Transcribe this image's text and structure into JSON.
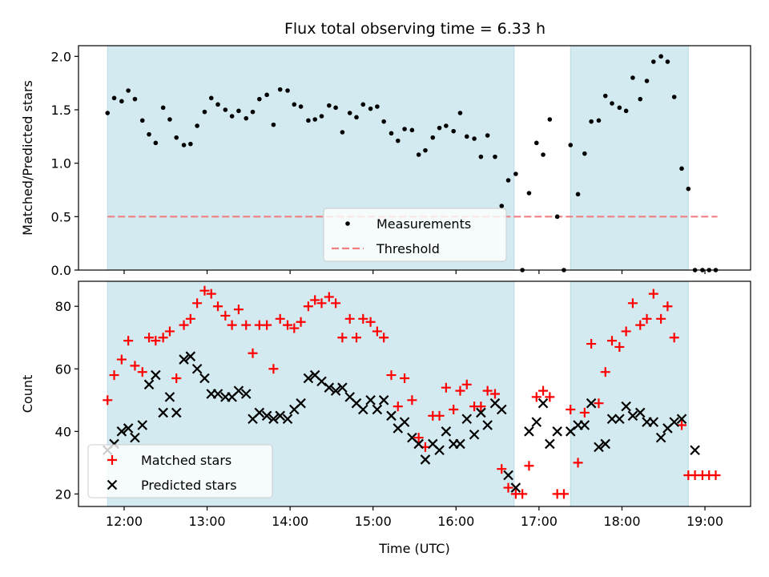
{
  "chart_data": {
    "type": "scatter",
    "title": "Flux total observing time = 6.33 h",
    "xlabel": "Time (UTC)",
    "x_unit": "hours UTC",
    "x_ticks": [
      {
        "value": 12,
        "label": "12:00"
      },
      {
        "value": 13,
        "label": "13:00"
      },
      {
        "value": 14,
        "label": "14:00"
      },
      {
        "value": 15,
        "label": "15:00"
      },
      {
        "value": 16,
        "label": "16:00"
      },
      {
        "value": 17,
        "label": "17:00"
      },
      {
        "value": 18,
        "label": "18:00"
      },
      {
        "value": 19,
        "label": "19:00"
      }
    ],
    "xlim": [
      11.45,
      19.55
    ],
    "observing_windows": [
      [
        11.8,
        16.7
      ],
      [
        17.38,
        18.8
      ]
    ],
    "window_color": "#d3eaf0",
    "panels": [
      {
        "ylabel": "Matched/Predicted stars",
        "ylim": [
          0,
          2.1
        ],
        "y_ticks": [
          {
            "value": 0,
            "label": "0.0"
          },
          {
            "value": 0.5,
            "label": "0.5"
          },
          {
            "value": 1.0,
            "label": "1.0"
          },
          {
            "value": 1.5,
            "label": "1.5"
          },
          {
            "value": 2.0,
            "label": "2.0"
          }
        ],
        "threshold": {
          "name": "Threshold",
          "value": 0.5,
          "x_range": [
            11.8,
            19.15
          ],
          "color": "#f08080"
        },
        "series": [
          {
            "name": "Measurements",
            "marker": "dot",
            "color": "#000000",
            "x": [
              11.8,
              11.88,
              11.97,
              12.05,
              12.13,
              12.22,
              12.3,
              12.38,
              12.47,
              12.55,
              12.63,
              12.72,
              12.8,
              12.88,
              12.97,
              13.05,
              13.13,
              13.22,
              13.3,
              13.38,
              13.47,
              13.55,
              13.63,
              13.72,
              13.8,
              13.88,
              13.97,
              14.05,
              14.13,
              14.22,
              14.3,
              14.38,
              14.47,
              14.55,
              14.63,
              14.72,
              14.8,
              14.88,
              14.97,
              15.05,
              15.13,
              15.22,
              15.3,
              15.38,
              15.47,
              15.55,
              15.63,
              15.72,
              15.8,
              15.88,
              15.97,
              16.05,
              16.13,
              16.22,
              16.3,
              16.38,
              16.47,
              16.55,
              16.63,
              16.72,
              16.8,
              16.88,
              16.97,
              17.05,
              17.13,
              17.22,
              17.3,
              17.38,
              17.47,
              17.55,
              17.63,
              17.72,
              17.8,
              17.88,
              17.97,
              18.05,
              18.13,
              18.22,
              18.3,
              18.38,
              18.47,
              18.55,
              18.63,
              18.72,
              18.8,
              18.88,
              18.97,
              19.05,
              19.13
            ],
            "y": [
              1.47,
              1.61,
              1.58,
              1.68,
              1.6,
              1.4,
              1.27,
              1.19,
              1.52,
              1.41,
              1.24,
              1.17,
              1.18,
              1.35,
              1.48,
              1.61,
              1.55,
              1.5,
              1.44,
              1.49,
              1.42,
              1.48,
              1.6,
              1.64,
              1.36,
              1.69,
              1.68,
              1.55,
              1.53,
              1.4,
              1.41,
              1.44,
              1.54,
              1.52,
              1.29,
              1.47,
              1.43,
              1.55,
              1.51,
              1.53,
              1.39,
              1.28,
              1.21,
              1.32,
              1.31,
              1.08,
              1.12,
              1.24,
              1.33,
              1.35,
              1.3,
              1.47,
              1.25,
              1.23,
              1.06,
              1.26,
              1.06,
              0.6,
              0.84,
              0.9,
              0.0,
              0.72,
              1.19,
              1.08,
              1.41,
              0.5,
              0.0,
              1.17,
              0.71,
              1.09,
              1.39,
              1.4,
              1.63,
              1.56,
              1.52,
              1.49,
              1.8,
              1.6,
              1.77,
              1.95,
              2.0,
              1.95,
              1.62,
              0.95,
              0.76,
              0.0,
              0.0,
              0.0,
              0.0
            ]
          }
        ]
      },
      {
        "ylabel": "Count",
        "ylim": [
          16,
          88
        ],
        "y_ticks": [
          {
            "value": 20,
            "label": "20"
          },
          {
            "value": 40,
            "label": "40"
          },
          {
            "value": 60,
            "label": "60"
          },
          {
            "value": 80,
            "label": "80"
          }
        ],
        "series": [
          {
            "name": "Matched stars",
            "marker": "plus",
            "color": "#ff0000",
            "x": [
              11.8,
              11.88,
              11.97,
              12.05,
              12.13,
              12.22,
              12.3,
              12.38,
              12.47,
              12.55,
              12.63,
              12.72,
              12.8,
              12.88,
              12.97,
              13.05,
              13.13,
              13.22,
              13.3,
              13.38,
              13.47,
              13.55,
              13.63,
              13.72,
              13.8,
              13.88,
              13.97,
              14.05,
              14.13,
              14.22,
              14.3,
              14.38,
              14.47,
              14.55,
              14.63,
              14.72,
              14.8,
              14.88,
              14.97,
              15.05,
              15.13,
              15.22,
              15.3,
              15.38,
              15.47,
              15.55,
              15.63,
              15.72,
              15.8,
              15.88,
              15.97,
              16.05,
              16.13,
              16.22,
              16.3,
              16.38,
              16.47,
              16.55,
              16.63,
              16.72,
              16.8,
              16.88,
              16.97,
              17.05,
              17.13,
              17.22,
              17.3,
              17.38,
              17.47,
              17.55,
              17.63,
              17.72,
              17.8,
              17.88,
              17.97,
              18.05,
              18.13,
              18.22,
              18.3,
              18.38,
              18.47,
              18.55,
              18.63,
              18.72,
              18.8,
              18.88,
              18.97,
              19.05,
              19.13
            ],
            "y": [
              50,
              58,
              63,
              69,
              61,
              59,
              70,
              69,
              70,
              72,
              57,
              74,
              76,
              81,
              85,
              84,
              80,
              77,
              74,
              79,
              74,
              65,
              74,
              74,
              60,
              76,
              74,
              73,
              75,
              80,
              82,
              81,
              83,
              81,
              70,
              76,
              70,
              76,
              75,
              72,
              70,
              58,
              48,
              57,
              50,
              38,
              35,
              45,
              45,
              54,
              47,
              53,
              55,
              48,
              48,
              53,
              52,
              28,
              22,
              20,
              20,
              29,
              51,
              53,
              51,
              20,
              20,
              47,
              30,
              46,
              68,
              49,
              59,
              69,
              67,
              72,
              81,
              74,
              76,
              84,
              76,
              80,
              70,
              42,
              26,
              26,
              26,
              26,
              26
            ]
          },
          {
            "name": "Predicted stars",
            "marker": "x",
            "color": "#000000",
            "x": [
              11.8,
              11.88,
              11.97,
              12.05,
              12.13,
              12.22,
              12.3,
              12.38,
              12.47,
              12.55,
              12.63,
              12.72,
              12.8,
              12.88,
              12.97,
              13.05,
              13.13,
              13.22,
              13.3,
              13.38,
              13.47,
              13.55,
              13.63,
              13.72,
              13.8,
              13.88,
              13.97,
              14.05,
              14.13,
              14.22,
              14.3,
              14.38,
              14.47,
              14.55,
              14.63,
              14.72,
              14.8,
              14.88,
              14.97,
              15.05,
              15.13,
              15.22,
              15.3,
              15.38,
              15.47,
              15.55,
              15.63,
              15.72,
              15.8,
              15.88,
              15.97,
              16.05,
              16.13,
              16.22,
              16.3,
              16.38,
              16.47,
              16.55,
              16.63,
              16.72,
              16.88,
              16.97,
              17.05,
              17.13,
              17.22,
              17.38,
              17.47,
              17.55,
              17.63,
              17.72,
              17.8,
              17.88,
              17.97,
              18.05,
              18.13,
              18.22,
              18.3,
              18.38,
              18.47,
              18.55,
              18.63,
              18.72,
              18.88
            ],
            "y": [
              34,
              36,
              40,
              41,
              38,
              42,
              55,
              58,
              46,
              51,
              46,
              63,
              64,
              60,
              57,
              52,
              52,
              51,
              51,
              53,
              52,
              44,
              46,
              45,
              44,
              45,
              44,
              47,
              49,
              57,
              58,
              56,
              54,
              53,
              54,
              51,
              49,
              47,
              50,
              47,
              50,
              45,
              41,
              43,
              38,
              36,
              31,
              36,
              34,
              40,
              36,
              36,
              44,
              39,
              46,
              42,
              49,
              47,
              26,
              22,
              40,
              43,
              49,
              36,
              40,
              40,
              42,
              42,
              49,
              35,
              36,
              44,
              44,
              48,
              45,
              46,
              43,
              43,
              38,
              41,
              43,
              44,
              34
            ]
          }
        ]
      }
    ],
    "legends": [
      {
        "panel": 0,
        "placement": "lower center",
        "entries": [
          "Measurements",
          "Threshold"
        ]
      },
      {
        "panel": 1,
        "placement": "lower left",
        "entries": [
          "Matched stars",
          "Predicted stars"
        ]
      }
    ]
  }
}
